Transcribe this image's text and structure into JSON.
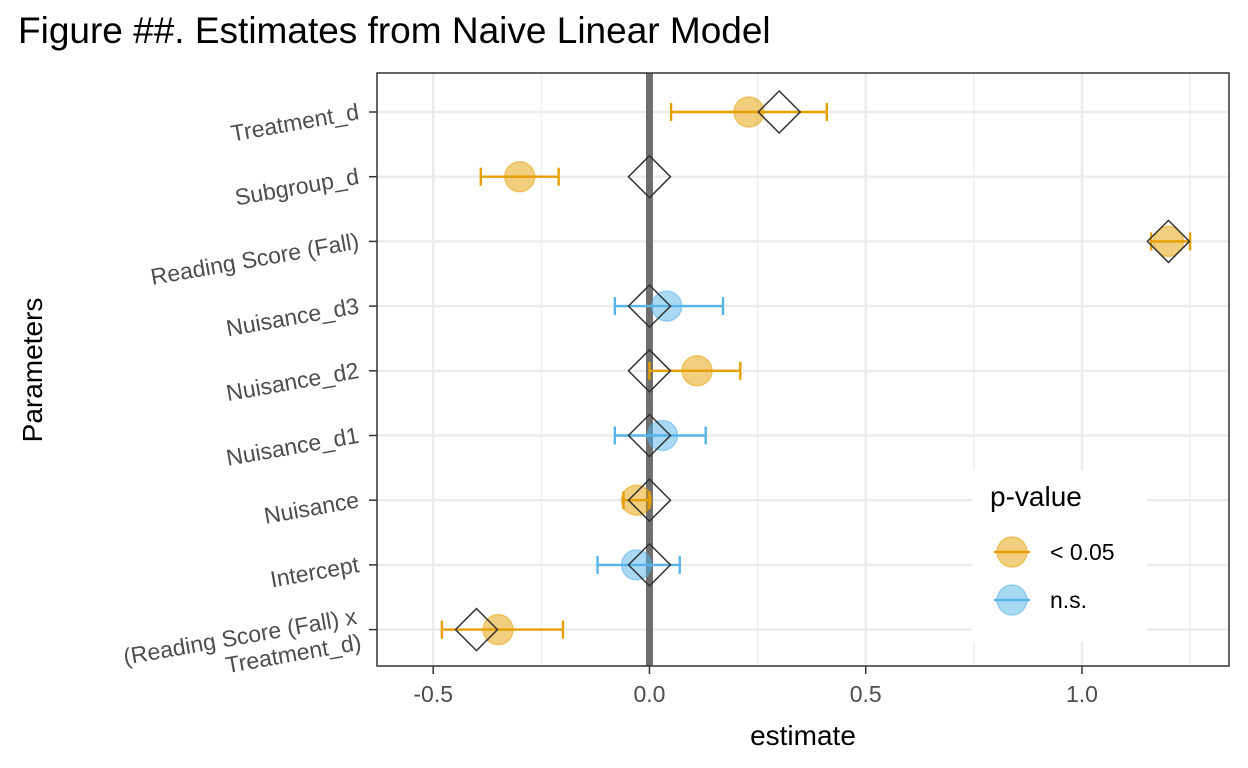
{
  "chart_data": {
    "type": "scatter",
    "title": "Figure ##. Estimates from Naive Linear Model",
    "xlabel": "estimate",
    "ylabel": "Parameters",
    "xlim": [
      -0.63,
      1.34
    ],
    "x_ticks": [
      -0.5,
      0.0,
      0.5,
      1.0
    ],
    "x_tick_labels": [
      "-0.5",
      "0.0",
      "0.5",
      "1.0"
    ],
    "grid": true,
    "reference_line": 0,
    "categories": [
      "Treatment_d",
      "Subgroup_d",
      "Reading Score (Fall)",
      "Nuisance_d3",
      "Nuisance_d2",
      "Nuisance_d1",
      "Nuisance",
      "Intercept",
      "(Reading Score (Fall) x\nTreatment_d)"
    ],
    "estimates": [
      {
        "parameter": "Treatment_d",
        "estimate": 0.23,
        "lower": 0.05,
        "upper": 0.41,
        "group": "< 0.05"
      },
      {
        "parameter": "Subgroup_d",
        "estimate": -0.3,
        "lower": -0.39,
        "upper": -0.21,
        "group": "< 0.05"
      },
      {
        "parameter": "Reading Score (Fall)",
        "estimate": 1.2,
        "lower": 1.16,
        "upper": 1.25,
        "group": "< 0.05"
      },
      {
        "parameter": "Nuisance_d3",
        "estimate": 0.04,
        "lower": -0.08,
        "upper": 0.17,
        "group": "n.s."
      },
      {
        "parameter": "Nuisance_d2",
        "estimate": 0.11,
        "lower": 0.0,
        "upper": 0.21,
        "group": "< 0.05"
      },
      {
        "parameter": "Nuisance_d1",
        "estimate": 0.03,
        "lower": -0.08,
        "upper": 0.13,
        "group": "n.s."
      },
      {
        "parameter": "Nuisance",
        "estimate": -0.03,
        "lower": -0.06,
        "upper": 0.0,
        "group": "< 0.05"
      },
      {
        "parameter": "Intercept",
        "estimate": -0.03,
        "lower": -0.12,
        "upper": 0.07,
        "group": "n.s."
      },
      {
        "parameter": "(Reading Score (Fall) x\nTreatment_d)",
        "estimate": -0.35,
        "lower": -0.48,
        "upper": -0.2,
        "group": "< 0.05"
      }
    ],
    "true_values": [
      {
        "parameter": "Treatment_d",
        "value": 0.3
      },
      {
        "parameter": "Subgroup_d",
        "value": 0.0
      },
      {
        "parameter": "Reading Score (Fall)",
        "value": 1.2
      },
      {
        "parameter": "Nuisance_d3",
        "value": 0.0
      },
      {
        "parameter": "Nuisance_d2",
        "value": 0.0
      },
      {
        "parameter": "Nuisance_d1",
        "value": 0.0
      },
      {
        "parameter": "Nuisance",
        "value": 0.0
      },
      {
        "parameter": "Intercept",
        "value": 0.0
      },
      {
        "parameter": "(Reading Score (Fall) x\nTreatment_d)",
        "value": -0.4
      }
    ],
    "legend": {
      "title": "p-value",
      "position": "bottom-right",
      "entries": [
        {
          "label": "< 0.05",
          "color": "#E69F00"
        },
        {
          "label": "n.s.",
          "color": "#56B4E9"
        }
      ]
    }
  }
}
